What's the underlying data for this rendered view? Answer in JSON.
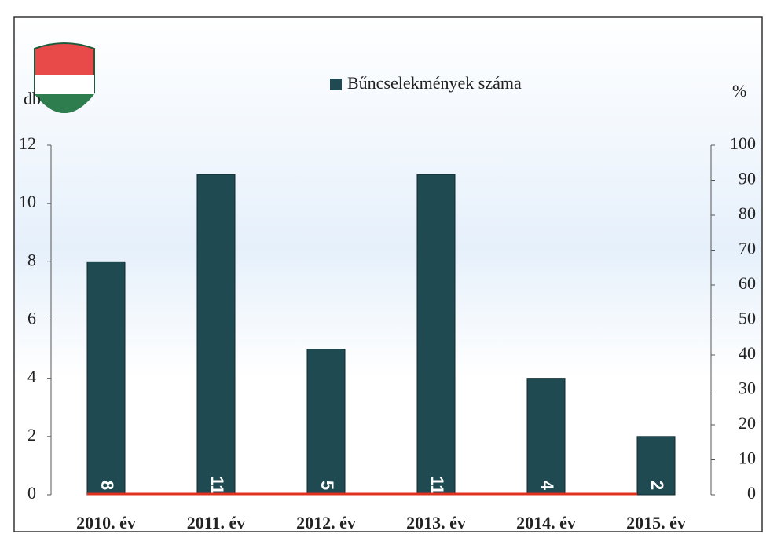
{
  "chart_data": {
    "type": "bar",
    "legend": "Bűncselekmények száma",
    "y_label": "db",
    "y2_label": "%",
    "categories": [
      "2010. év",
      "2011. év",
      "2012. év",
      "2013. év",
      "2014. év",
      "2015. év"
    ],
    "series": [
      {
        "name": "Bűncselekmények száma",
        "color": "#1f4a52",
        "values": [
          8,
          11,
          5,
          11,
          4,
          2
        ]
      },
      {
        "type": "line",
        "axis": "y2",
        "color": "#e0301e",
        "values": [
          0,
          0,
          0,
          0,
          0,
          0
        ]
      }
    ],
    "ylim": [
      0,
      12
    ],
    "yticks": [
      0,
      2,
      4,
      6,
      8,
      10,
      12
    ],
    "y2lim": [
      0,
      100
    ],
    "y2ticks": [
      0,
      10,
      20,
      30,
      40,
      50,
      60,
      70,
      80,
      90,
      100
    ],
    "data_labels": true
  }
}
